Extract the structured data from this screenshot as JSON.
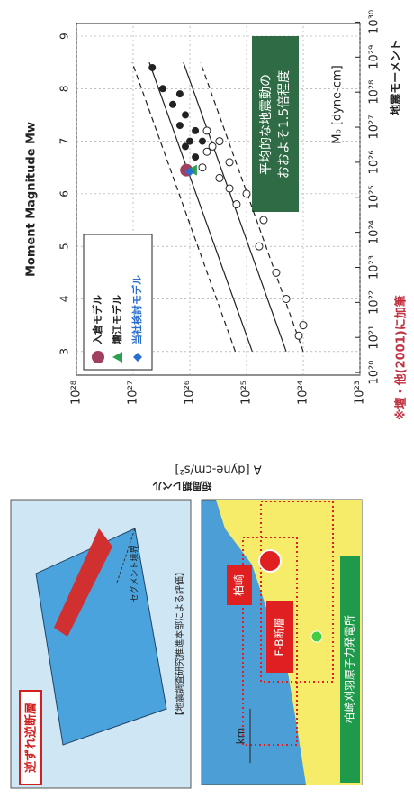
{
  "chart_data": {
    "type": "scatter",
    "xlabel": "Moment Magnitude Mw",
    "ylabel": "A [dyne-cm/s²]",
    "ylabel_ja": "短周期レベル",
    "x2label": "地震モーメント",
    "x2label_inner": "M₀ [dyne-cm]",
    "annotation": [
      "平均的な地震動の",
      "おおよそ1.5倍程度"
    ],
    "note": "※壇・他(2001)に加筆",
    "xlim": [
      2.55,
      9.24
    ],
    "xticks": [
      3,
      4,
      5,
      6,
      7,
      8,
      9
    ],
    "yscale": "log",
    "ylim": [
      1e+23,
      1e+28
    ],
    "yticks": [
      {
        "value": 1e+28,
        "label": "10²⁸"
      },
      {
        "value": 1e+27,
        "label": "10²⁷"
      },
      {
        "value": 1e+26,
        "label": "10²⁶"
      },
      {
        "value": 1e+25,
        "label": "10²⁵"
      },
      {
        "value": 1e+24,
        "label": "10²⁴"
      },
      {
        "value": 1e+23,
        "label": "10²³"
      }
    ],
    "x2scale": "log",
    "x2lim": [
      8.41e+19,
      9.12e+29
    ],
    "x2ticks": [
      {
        "value": 1e+20,
        "label": "10²⁰"
      },
      {
        "value": 1e+21,
        "label": "10²¹"
      },
      {
        "value": 1e+22,
        "label": "10²²"
      },
      {
        "value": 1e+23,
        "label": "10²³"
      },
      {
        "value": 1e+24,
        "label": "10²⁴"
      },
      {
        "value": 1e+25,
        "label": "10²⁵"
      },
      {
        "value": 1e+26,
        "label": "10²⁶"
      },
      {
        "value": 1e+27,
        "label": "10²⁷"
      },
      {
        "value": 1e+28,
        "label": "10²⁸"
      },
      {
        "value": 1e+29,
        "label": "10²⁹"
      },
      {
        "value": 1e+30,
        "label": "10³⁰"
      }
    ],
    "grid": true,
    "legend": "upper left",
    "series": [
      {
        "marker": "line",
        "dash": true,
        "color": "#222",
        "x": [
          3,
          8.5
        ],
        "values": [
          1.58e+25,
          1.04e+27
        ]
      },
      {
        "marker": "line",
        "dash": false,
        "color": "#222",
        "x": [
          3,
          8.5
        ],
        "values": [
          7.94e+24,
          5.2e+26
        ]
      },
      {
        "marker": "line",
        "dash": false,
        "color": "#222",
        "x": [
          3,
          8.5
        ],
        "values": [
          2e+24,
          1.3e+26
        ]
      },
      {
        "marker": "line",
        "dash": true,
        "color": "#222",
        "x": [
          3,
          8.5
        ],
        "values": [
          1e+24,
          6.5e+25
        ]
      },
      {
        "marker": "filled",
        "color": "#222",
        "x": [
          8.4,
          8.0,
          7.9,
          7.7,
          7.5,
          7.3,
          7.2,
          7.0,
          7.0,
          6.9,
          6.7
        ],
        "values": [
          4.6e+26,
          3e+26,
          1.5e+26,
          2e+26,
          1.2e+26,
          1.5e+26,
          8e+25,
          1e+26,
          6e+25,
          1.2e+26,
          8e+25
        ]
      },
      {
        "marker": "open",
        "color": "#222",
        "x": [
          7.2,
          7.0,
          6.9,
          6.8,
          6.6,
          6.5,
          6.3,
          6.1,
          6.0,
          5.8,
          5.5,
          5.0,
          4.5,
          4.0,
          3.5,
          3.3
        ],
        "values": [
          5e+25,
          3e+25,
          4e+25,
          5e+25,
          2e+25,
          6e+25,
          3e+25,
          2e+25,
          1e+25,
          1.5e+25,
          5e+24,
          6e+24,
          3e+24,
          2e+24,
          1e+24,
          1.2e+24
        ]
      },
      {
        "name": "入倉モデル",
        "marker": "circle",
        "color": "#a0405e",
        "x": [
          6.45
        ],
        "values": [
          1.15e+26
        ]
      },
      {
        "name": "壇江モデル",
        "marker": "triangle",
        "color": "#2aa050",
        "x": [
          6.45
        ],
        "values": [
          9e+25
        ]
      },
      {
        "name": "当社検討モデル",
        "marker": "diamond",
        "color": "#2a6fd0",
        "x": [
          6.42
        ],
        "values": [
          1e+26
        ]
      }
    ]
  },
  "panels": {
    "fault": {
      "label": "逆ずれ逆断層",
      "caption": "【地震調査研究推進本部による評価】",
      "segment": "セグメント境界"
    },
    "map": {
      "scale": "km",
      "fault_label": "F-B断層",
      "site_label": "柏崎",
      "plant_label": "柏崎刈羽原子力発電所"
    }
  }
}
